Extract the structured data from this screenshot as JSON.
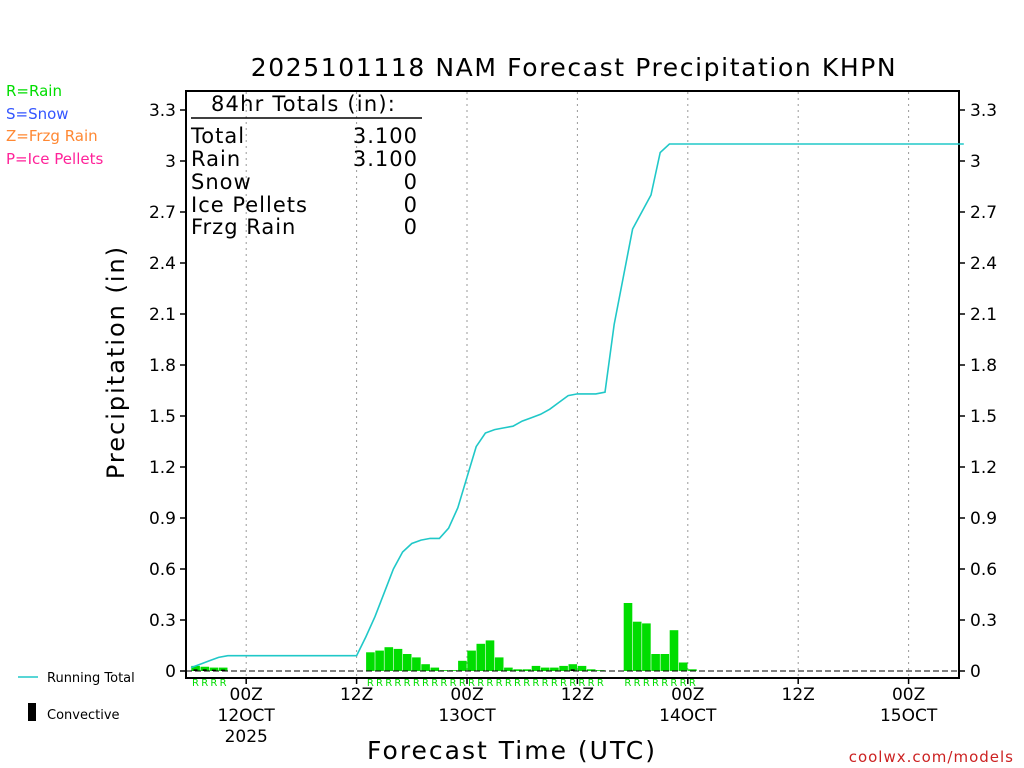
{
  "legend_types": {
    "rain": {
      "label": "R=Rain",
      "color": "#00dd00"
    },
    "snow": {
      "label": "S=Snow",
      "color": "#3355ff"
    },
    "frzg": {
      "label": "Z=Frzg Rain",
      "color": "#ff8833"
    },
    "ice": {
      "label": "P=Ice Pellets",
      "color": "#ff2299"
    }
  },
  "totals_box": {
    "header": "84hr Totals (in):",
    "rows": [
      {
        "label": "Total",
        "value": "3.100"
      },
      {
        "label": "Rain",
        "value": "3.100"
      },
      {
        "label": "Snow",
        "value": "0"
      },
      {
        "label": "Ice Pellets",
        "value": "0"
      },
      {
        "label": "Frzg Rain",
        "value": "0"
      }
    ]
  },
  "bottom_legend": {
    "running_total": "Running Total",
    "convective": "Convective"
  },
  "credit": "coolwx.com/models",
  "colors": {
    "running_total": "#20c8c8",
    "precip_bar": "#00dd00",
    "convective": "#000000",
    "credit": "#cc2222"
  },
  "chart_data": {
    "type": "bar",
    "title": "2025101118 NAM Forecast Precipitation KHPN",
    "xlabel": "Forecast Time (UTC)",
    "ylabel": "Precipitation (in)",
    "ylim": [
      0,
      3.4
    ],
    "yticks": [
      0,
      0.3,
      0.6,
      0.9,
      1.2,
      1.5,
      1.8,
      2.1,
      2.4,
      2.7,
      3,
      3.3
    ],
    "ytick_labels": [
      "0",
      "0.3",
      "0.6",
      "0.9",
      "1.2",
      "1.5",
      "1.8",
      "2.1",
      "2.4",
      "2.7",
      "3",
      "3.3"
    ],
    "x_unit": "forecast hour",
    "xlim": [
      0,
      84
    ],
    "xticks": [
      {
        "hour": 6,
        "label": "00Z",
        "sub": "12OCT",
        "year": "2025"
      },
      {
        "hour": 18,
        "label": "12Z",
        "sub": "",
        "year": ""
      },
      {
        "hour": 30,
        "label": "00Z",
        "sub": "13OCT",
        "year": ""
      },
      {
        "hour": 42,
        "label": "12Z",
        "sub": "",
        "year": ""
      },
      {
        "hour": 54,
        "label": "00Z",
        "sub": "14OCT",
        "year": ""
      },
      {
        "hour": 66,
        "label": "12Z",
        "sub": "",
        "year": ""
      },
      {
        "hour": 78,
        "label": "00Z",
        "sub": "15OCT",
        "year": ""
      }
    ],
    "grid": "vertical dotted at 00Z/12Z",
    "hourly_precip": {
      "hours": [
        0,
        1,
        2,
        3,
        19,
        20,
        21,
        22,
        23,
        24,
        25,
        26,
        27,
        28,
        29,
        30,
        31,
        32,
        33,
        34,
        35,
        36,
        37,
        38,
        39,
        40,
        41,
        42,
        43,
        44,
        47,
        48,
        49,
        50,
        51,
        52,
        53,
        54
      ],
      "values": [
        0.03,
        0.025,
        0.02,
        0.02,
        0.11,
        0.12,
        0.14,
        0.13,
        0.1,
        0.08,
        0.04,
        0.02,
        0.005,
        0.005,
        0.06,
        0.12,
        0.16,
        0.18,
        0.08,
        0.02,
        0.01,
        0.01,
        0.03,
        0.02,
        0.02,
        0.03,
        0.04,
        0.03,
        0.01,
        0.005,
        0.4,
        0.29,
        0.28,
        0.1,
        0.1,
        0.24,
        0.05,
        0.01
      ]
    },
    "convective": {
      "hours": [
        0,
        1,
        2,
        3,
        41
      ],
      "values": [
        0.01,
        0.01,
        0.008,
        0.008,
        0.01
      ]
    },
    "type_markers": {
      "letter": "R",
      "ranges": [
        [
          0,
          3
        ],
        [
          19,
          44
        ],
        [
          47,
          54
        ]
      ]
    },
    "series": [
      {
        "name": "Running Total",
        "type": "line",
        "x": [
          0,
          1,
          2,
          3,
          4,
          18,
          19,
          20,
          21,
          22,
          23,
          24,
          25,
          26,
          27,
          28,
          29,
          30,
          31,
          32,
          33,
          34,
          35,
          36,
          37,
          38,
          39,
          40,
          41,
          42,
          43,
          44,
          45,
          46,
          47,
          48,
          49,
          50,
          51,
          52,
          53,
          54,
          55,
          84
        ],
        "y": [
          0.02,
          0.04,
          0.06,
          0.08,
          0.09,
          0.09,
          0.2,
          0.32,
          0.46,
          0.6,
          0.7,
          0.75,
          0.77,
          0.78,
          0.78,
          0.84,
          0.96,
          1.14,
          1.32,
          1.4,
          1.42,
          1.43,
          1.44,
          1.47,
          1.49,
          1.51,
          1.54,
          1.58,
          1.62,
          1.63,
          1.63,
          1.63,
          1.64,
          2.04,
          2.32,
          2.6,
          2.7,
          2.8,
          3.05,
          3.1,
          3.1,
          3.1,
          3.1,
          3.1
        ]
      }
    ]
  }
}
